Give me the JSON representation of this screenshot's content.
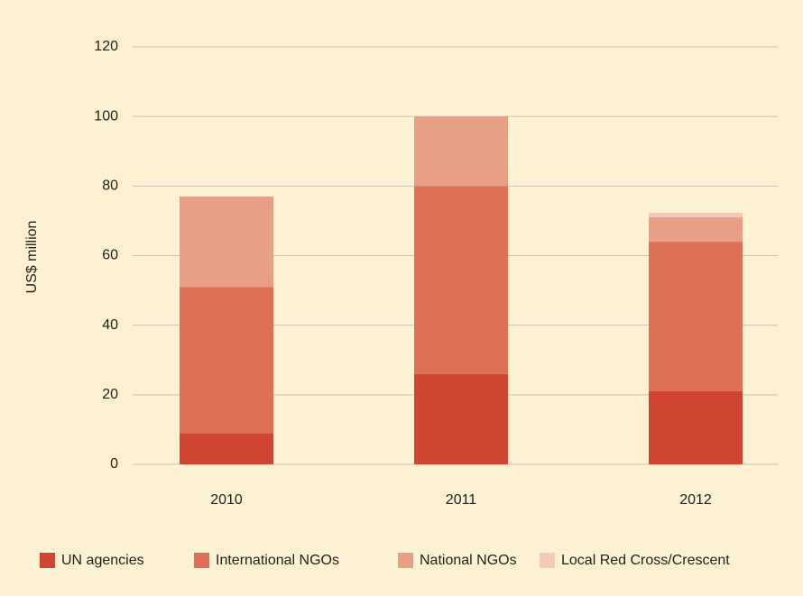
{
  "chart_data": {
    "type": "stacked_bar",
    "y_label": "US$ million",
    "categories": [
      "2010",
      "2011",
      "2012"
    ],
    "series": [
      {
        "name": "UN agencies",
        "color": "#d04432",
        "values": [
          9,
          26,
          21
        ]
      },
      {
        "name": "International NGOs",
        "color": "#df7058",
        "values": [
          42,
          54,
          43
        ]
      },
      {
        "name": "National NGOs",
        "color": "#e89f85",
        "values": [
          26,
          20,
          7
        ]
      },
      {
        "name": "Local Red Cross/Crescent",
        "color": "#f3c9bb",
        "values": [
          0,
          0,
          1.3
        ]
      }
    ],
    "ylim": [
      0,
      120
    ],
    "yticks": [
      0,
      20,
      40,
      60,
      80,
      100,
      120
    ],
    "grid": true,
    "legend": "bottom"
  }
}
